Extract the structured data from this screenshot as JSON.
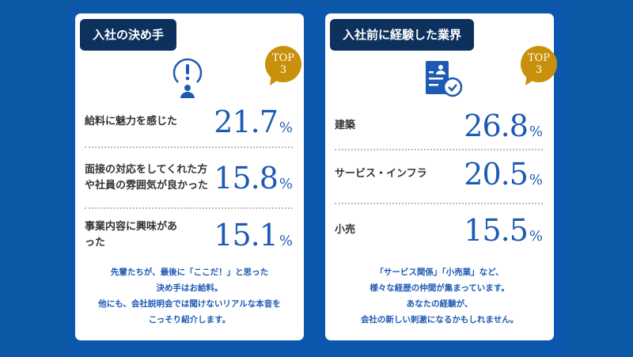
{
  "colors": {
    "background": "#0e58a8",
    "tab": "#0c315c",
    "badge": "#c9900c",
    "value": "#1d5ab3"
  },
  "cards": [
    {
      "title": "入社の決め手",
      "badge": {
        "line1": "TOP",
        "line2": "3"
      },
      "icon": "exclamation-person-icon",
      "items": [
        {
          "label": "給料に魅力を感じた",
          "value": "21.7",
          "unit": "%"
        },
        {
          "label": "面接の対応をしてくれた方や社員の雰囲気が良かった",
          "value": "15.8",
          "unit": "%"
        },
        {
          "label": "事業内容に興味があった",
          "value": "15.1",
          "unit": "%"
        }
      ],
      "note": [
        "先輩たちが、最後に「ここだ！」と思った",
        "決め手はお給料。",
        "他にも、会社説明会では聞けないリアルな本音を",
        "こっそり紹介します。"
      ]
    },
    {
      "title": "入社前に経験した業界",
      "badge": {
        "line1": "TOP",
        "line2": "3"
      },
      "icon": "resume-check-icon",
      "items": [
        {
          "label": "建築",
          "value": "26.8",
          "unit": "%"
        },
        {
          "label": "サービス・インフラ",
          "value": "20.5",
          "unit": "%"
        },
        {
          "label": "小売",
          "value": "15.5",
          "unit": "%"
        }
      ],
      "note": [
        "「サービス関係」「小売業」など、",
        "様々な経歴の仲間が集まっています。",
        "あなたの経験が、",
        "会社の新しい刺激になるかもしれません。"
      ]
    }
  ]
}
